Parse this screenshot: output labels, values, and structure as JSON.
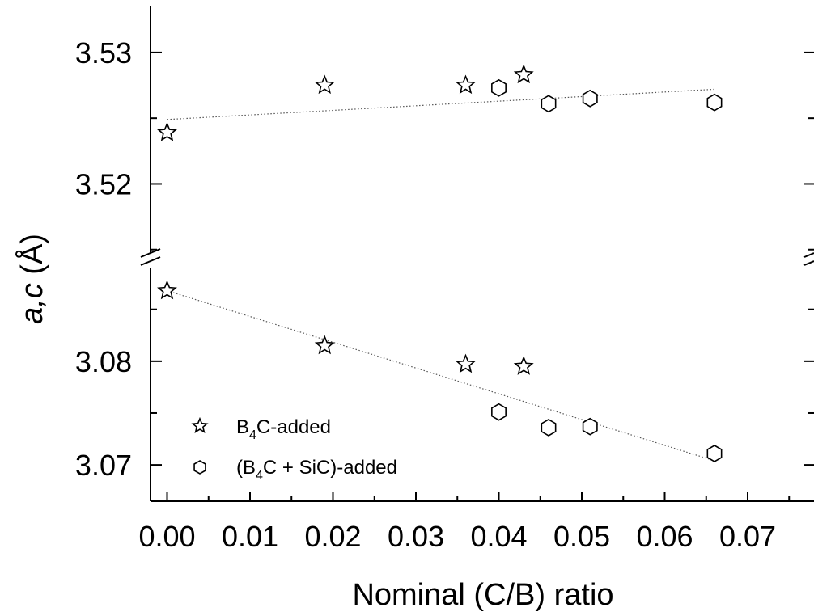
{
  "chart_data": {
    "type": "scatter",
    "xlabel": "Nominal (C/B) ratio",
    "ylabel_italic": "a,c",
    "ylabel_unit": " (Å)",
    "xlim": [
      -0.002,
      0.078
    ],
    "x_ticks": [
      "0.00",
      "0.01",
      "0.02",
      "0.03",
      "0.04",
      "0.05",
      "0.06",
      "0.07"
    ],
    "x_tick_values": [
      0,
      0.01,
      0.02,
      0.03,
      0.04,
      0.05,
      0.06,
      0.07
    ],
    "y_broken_axis": true,
    "y_upper_panel": {
      "ylim": [
        3.514,
        3.5335
      ],
      "ticks": [
        "3.52",
        "3.53"
      ],
      "tick_values": [
        3.52,
        3.53
      ]
    },
    "y_lower_panel": {
      "ylim": [
        3.0665,
        3.0895
      ],
      "ticks": [
        "3.07",
        "3.08"
      ],
      "tick_values": [
        3.07,
        3.08
      ]
    },
    "grid": false,
    "legend_position": "bottom-left",
    "series": [
      {
        "name_parts": [
          "B",
          "4",
          "C-added"
        ],
        "marker": "star",
        "c_points": [
          {
            "x": 0.0,
            "y": 3.5239
          },
          {
            "x": 0.019,
            "y": 3.5275
          },
          {
            "x": 0.036,
            "y": 3.5275
          },
          {
            "x": 0.043,
            "y": 3.5283
          }
        ],
        "a_points": [
          {
            "x": 0.0,
            "y": 3.0868
          },
          {
            "x": 0.019,
            "y": 3.0815
          },
          {
            "x": 0.036,
            "y": 3.0797
          },
          {
            "x": 0.043,
            "y": 3.0795
          }
        ]
      },
      {
        "name_parts": [
          "(B",
          "4",
          "C + SiC)-added"
        ],
        "marker": "hexagon",
        "c_points": [
          {
            "x": 0.04,
            "y": 3.5273
          },
          {
            "x": 0.046,
            "y": 3.5261
          },
          {
            "x": 0.051,
            "y": 3.5265
          },
          {
            "x": 0.066,
            "y": 3.5262
          }
        ],
        "a_points": [
          {
            "x": 0.04,
            "y": 3.0751
          },
          {
            "x": 0.046,
            "y": 3.0736
          },
          {
            "x": 0.051,
            "y": 3.0737
          },
          {
            "x": 0.066,
            "y": 3.0711
          }
        ]
      }
    ],
    "fit_lines": [
      {
        "panel": "upper",
        "x": [
          0.0,
          0.066
        ],
        "y": [
          3.5249,
          3.5272
        ]
      },
      {
        "panel": "lower",
        "x": [
          0.0,
          0.066
        ],
        "y": [
          3.0868,
          3.0704
        ]
      }
    ]
  }
}
